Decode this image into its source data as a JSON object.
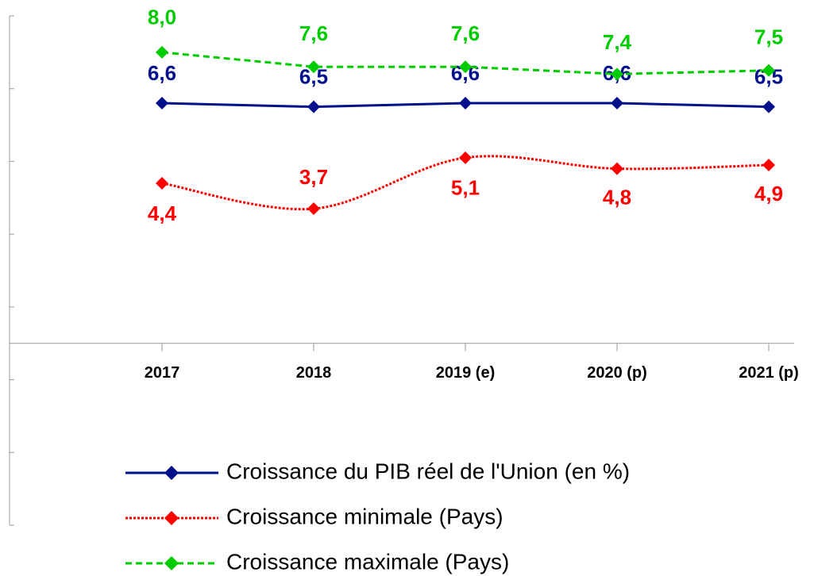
{
  "chart_data": {
    "type": "line",
    "categories": [
      "2017",
      "2018",
      "2019 (e)",
      "2020 (p)",
      "2021 (p)"
    ],
    "series": [
      {
        "name": "Croissance du PIB réel de l'Union (en %)",
        "color": "#000f8c",
        "style": "solid",
        "values": [
          6.6,
          6.5,
          6.6,
          6.6,
          6.5
        ],
        "value_labels": [
          "6,6",
          "6,5",
          "6,6",
          "6,6",
          "6,5"
        ]
      },
      {
        "name": "Croissance minimale (Pays)",
        "color": "#ff0000",
        "style": "dotted",
        "smooth": true,
        "values": [
          4.4,
          3.7,
          5.1,
          4.8,
          4.9
        ],
        "value_labels": [
          "4,4",
          "3,7",
          "5,1",
          "4,8",
          "4,9"
        ]
      },
      {
        "name": "Croissance maximale (Pays)",
        "color": "#00cc00",
        "style": "dashed",
        "values": [
          8.0,
          7.6,
          7.6,
          7.4,
          7.5
        ],
        "value_labels": [
          "8,0",
          "7,6",
          "7,6",
          "7,4",
          "7,5"
        ]
      }
    ],
    "ylim": [
      -5,
      9
    ],
    "yticks": [
      -5,
      -3,
      -1,
      1,
      3,
      5,
      7,
      9
    ]
  }
}
